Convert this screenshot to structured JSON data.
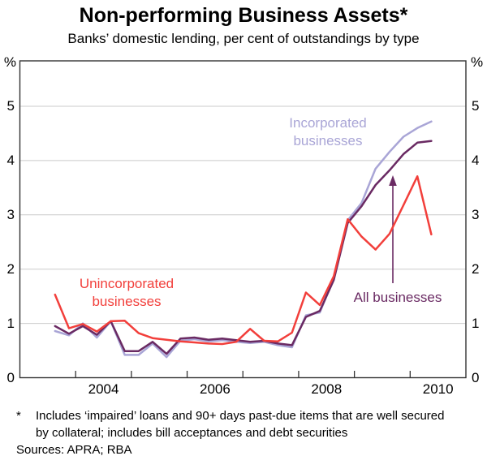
{
  "title": "Non-performing Business Assets*",
  "subtitle": "Banks’ domestic lending, per cent of outstandings by type",
  "axes": {
    "unit_left": "%",
    "unit_right": "%",
    "y_ticks": [
      0,
      1,
      2,
      3,
      4,
      5
    ],
    "x_tick_years": [
      2004,
      2005,
      2006,
      2007,
      2008,
      2009,
      2010
    ],
    "x_year_labels": [
      "2004",
      "2006",
      "2008",
      "2010"
    ]
  },
  "annotations": {
    "unincorporated": {
      "lines": [
        "Unincorporated",
        "businesses"
      ],
      "color": "#F23F3B"
    },
    "incorporated": {
      "lines": [
        "Incorporated",
        "businesses"
      ],
      "color": "#A9A5D6"
    },
    "all_businesses": {
      "label": "All businesses",
      "color": "#6A2A63",
      "arrow": "up"
    }
  },
  "footnote": {
    "marker": "*",
    "line1": "Includes ‘impaired’ loans and 90+ days past-due items that are well secured",
    "line2": "by collateral; includes bill acceptances and debt securities",
    "sources": "Sources: APRA; RBA"
  },
  "chart_data": {
    "type": "line",
    "title": "Non-performing Business Assets",
    "ylabel": "%",
    "ylim": [
      0,
      5.85
    ],
    "grid": "horizontal",
    "x_range_years": [
      2003,
      2011
    ],
    "x": [
      "2003 Q3",
      "2003 Q4",
      "2004 Q1",
      "2004 Q2",
      "2004 Q3",
      "2004 Q4",
      "2005 Q1",
      "2005 Q2",
      "2005 Q3",
      "2005 Q4",
      "2006 Q1",
      "2006 Q2",
      "2006 Q3",
      "2006 Q4",
      "2007 Q1",
      "2007 Q2",
      "2007 Q3",
      "2007 Q4",
      "2008 Q1",
      "2008 Q2",
      "2008 Q3",
      "2008 Q4",
      "2009 Q1",
      "2009 Q2",
      "2009 Q3",
      "2009 Q4",
      "2010 Q1",
      "2010 Q2"
    ],
    "series": [
      {
        "name": "Unincorporated businesses",
        "color": "#F23F3B",
        "values": [
          1.53,
          0.91,
          0.99,
          0.85,
          1.04,
          1.05,
          0.82,
          0.73,
          0.7,
          0.67,
          0.65,
          0.63,
          0.62,
          0.66,
          0.9,
          0.68,
          0.67,
          0.83,
          1.57,
          1.34,
          1.87,
          2.92,
          2.6,
          2.36,
          2.65,
          3.18,
          3.71,
          2.64
        ]
      },
      {
        "name": "All businesses",
        "color": "#6A2A63",
        "values": [
          0.95,
          0.81,
          0.95,
          0.79,
          1.04,
          0.49,
          0.49,
          0.66,
          0.44,
          0.72,
          0.74,
          0.7,
          0.72,
          0.69,
          0.66,
          0.68,
          0.63,
          0.6,
          1.12,
          1.23,
          1.8,
          2.85,
          3.16,
          3.55,
          3.82,
          4.12,
          4.33,
          4.36
        ]
      },
      {
        "name": "Incorporated businesses",
        "color": "#A9A5D6",
        "values": [
          0.86,
          0.78,
          1.0,
          0.74,
          1.04,
          0.42,
          0.42,
          0.63,
          0.38,
          0.68,
          0.71,
          0.67,
          0.69,
          0.66,
          0.64,
          0.66,
          0.6,
          0.56,
          1.15,
          1.2,
          1.83,
          2.9,
          3.22,
          3.85,
          4.16,
          4.44,
          4.6,
          4.72
        ]
      }
    ]
  }
}
